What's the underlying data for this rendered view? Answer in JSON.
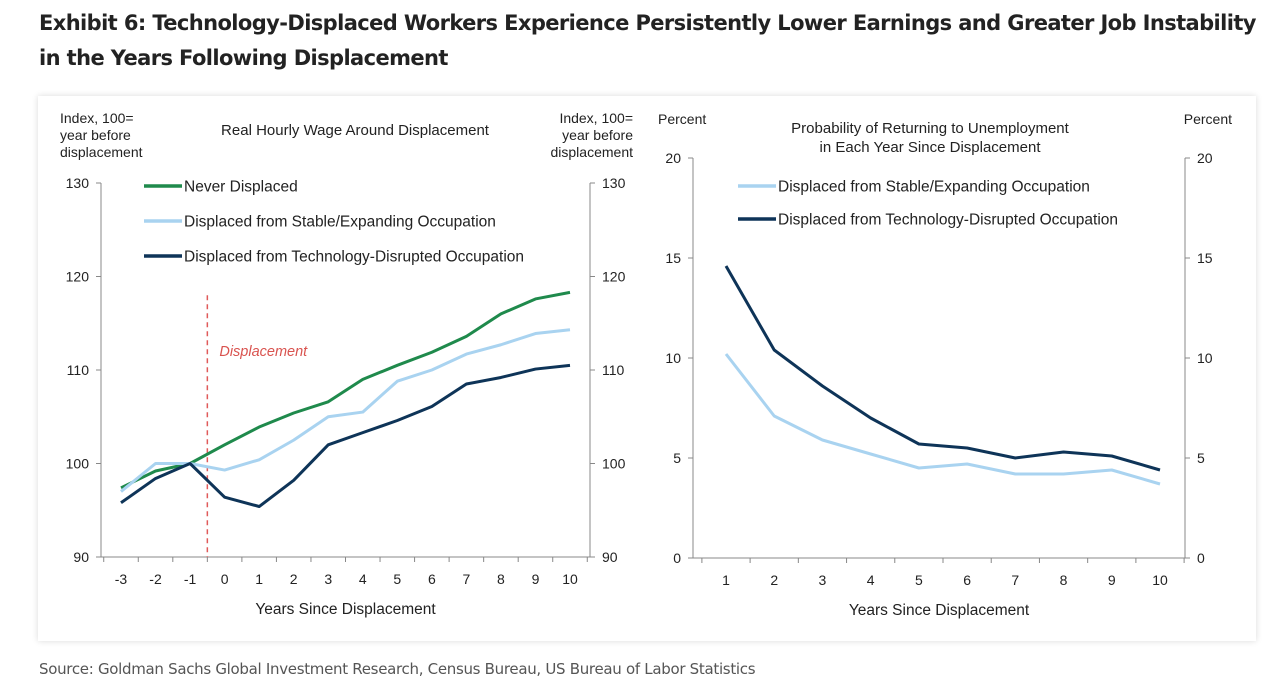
{
  "title": "Exhibit 6: Technology-Displaced Workers Experience Persistently Lower Earnings and Greater Job Instability in the Years Following Displacement",
  "source": "Source: Goldman Sachs Global Investment Research, Census Bureau, US Bureau of Labor Statistics",
  "chart_data": [
    {
      "type": "line",
      "title": "Real Hourly Wage Around Displacement",
      "ylabel_left": [
        "Index, 100=",
        "year before",
        "displacement"
      ],
      "ylabel_right": [
        "Index, 100=",
        "year before",
        "displacement"
      ],
      "xlabel": "Years Since Displacement",
      "x": [
        -3,
        -2,
        -1,
        0,
        1,
        2,
        3,
        4,
        5,
        6,
        7,
        8,
        9,
        10
      ],
      "ylim": [
        90,
        130
      ],
      "yticks": [
        90,
        100,
        110,
        120,
        130
      ],
      "annotation": "Displacement",
      "annotation_x": -0.5,
      "legend": "top-left",
      "series": [
        {
          "name": "Never Displaced",
          "color": "#1f8a4c",
          "values": [
            97.4,
            99.2,
            100,
            102,
            103.9,
            105.4,
            106.6,
            109,
            110.5,
            111.9,
            113.6,
            116,
            117.6,
            118.3
          ]
        },
        {
          "name": "Displaced from Stable/Expanding Occupation",
          "color": "#a9d3f0",
          "values": [
            97,
            100,
            100,
            99.3,
            100.4,
            102.5,
            105,
            105.5,
            108.8,
            110,
            111.7,
            112.7,
            113.9,
            114.3
          ]
        },
        {
          "name": "Displaced from Technology-Disrupted Occupation",
          "color": "#0e3458",
          "values": [
            95.8,
            98.4,
            100,
            96.4,
            95.4,
            98.2,
            102,
            103.3,
            104.6,
            106.1,
            108.5,
            109.2,
            110.1,
            110.5
          ]
        }
      ]
    },
    {
      "type": "line",
      "title": [
        "Probability of Returning to Unemployment",
        "in Each Year Since Displacement"
      ],
      "ylabel_left": "Percent",
      "ylabel_right": "Percent",
      "xlabel": "Years Since Displacement",
      "x": [
        1,
        2,
        3,
        4,
        5,
        6,
        7,
        8,
        9,
        10
      ],
      "ylim": [
        0,
        20
      ],
      "yticks": [
        0,
        5,
        10,
        15,
        20
      ],
      "legend": "top-left",
      "series": [
        {
          "name": "Displaced from Stable/Expanding Occupation",
          "color": "#a9d3f0",
          "values": [
            10.2,
            7.1,
            5.9,
            5.2,
            4.5,
            4.7,
            4.2,
            4.2,
            4.4,
            3.7
          ]
        },
        {
          "name": "Displaced from Technology-Disrupted Occupation",
          "color": "#0e3458",
          "values": [
            14.6,
            10.4,
            8.6,
            7.0,
            5.7,
            5.5,
            5.0,
            5.3,
            5.1,
            4.4
          ]
        }
      ]
    }
  ]
}
